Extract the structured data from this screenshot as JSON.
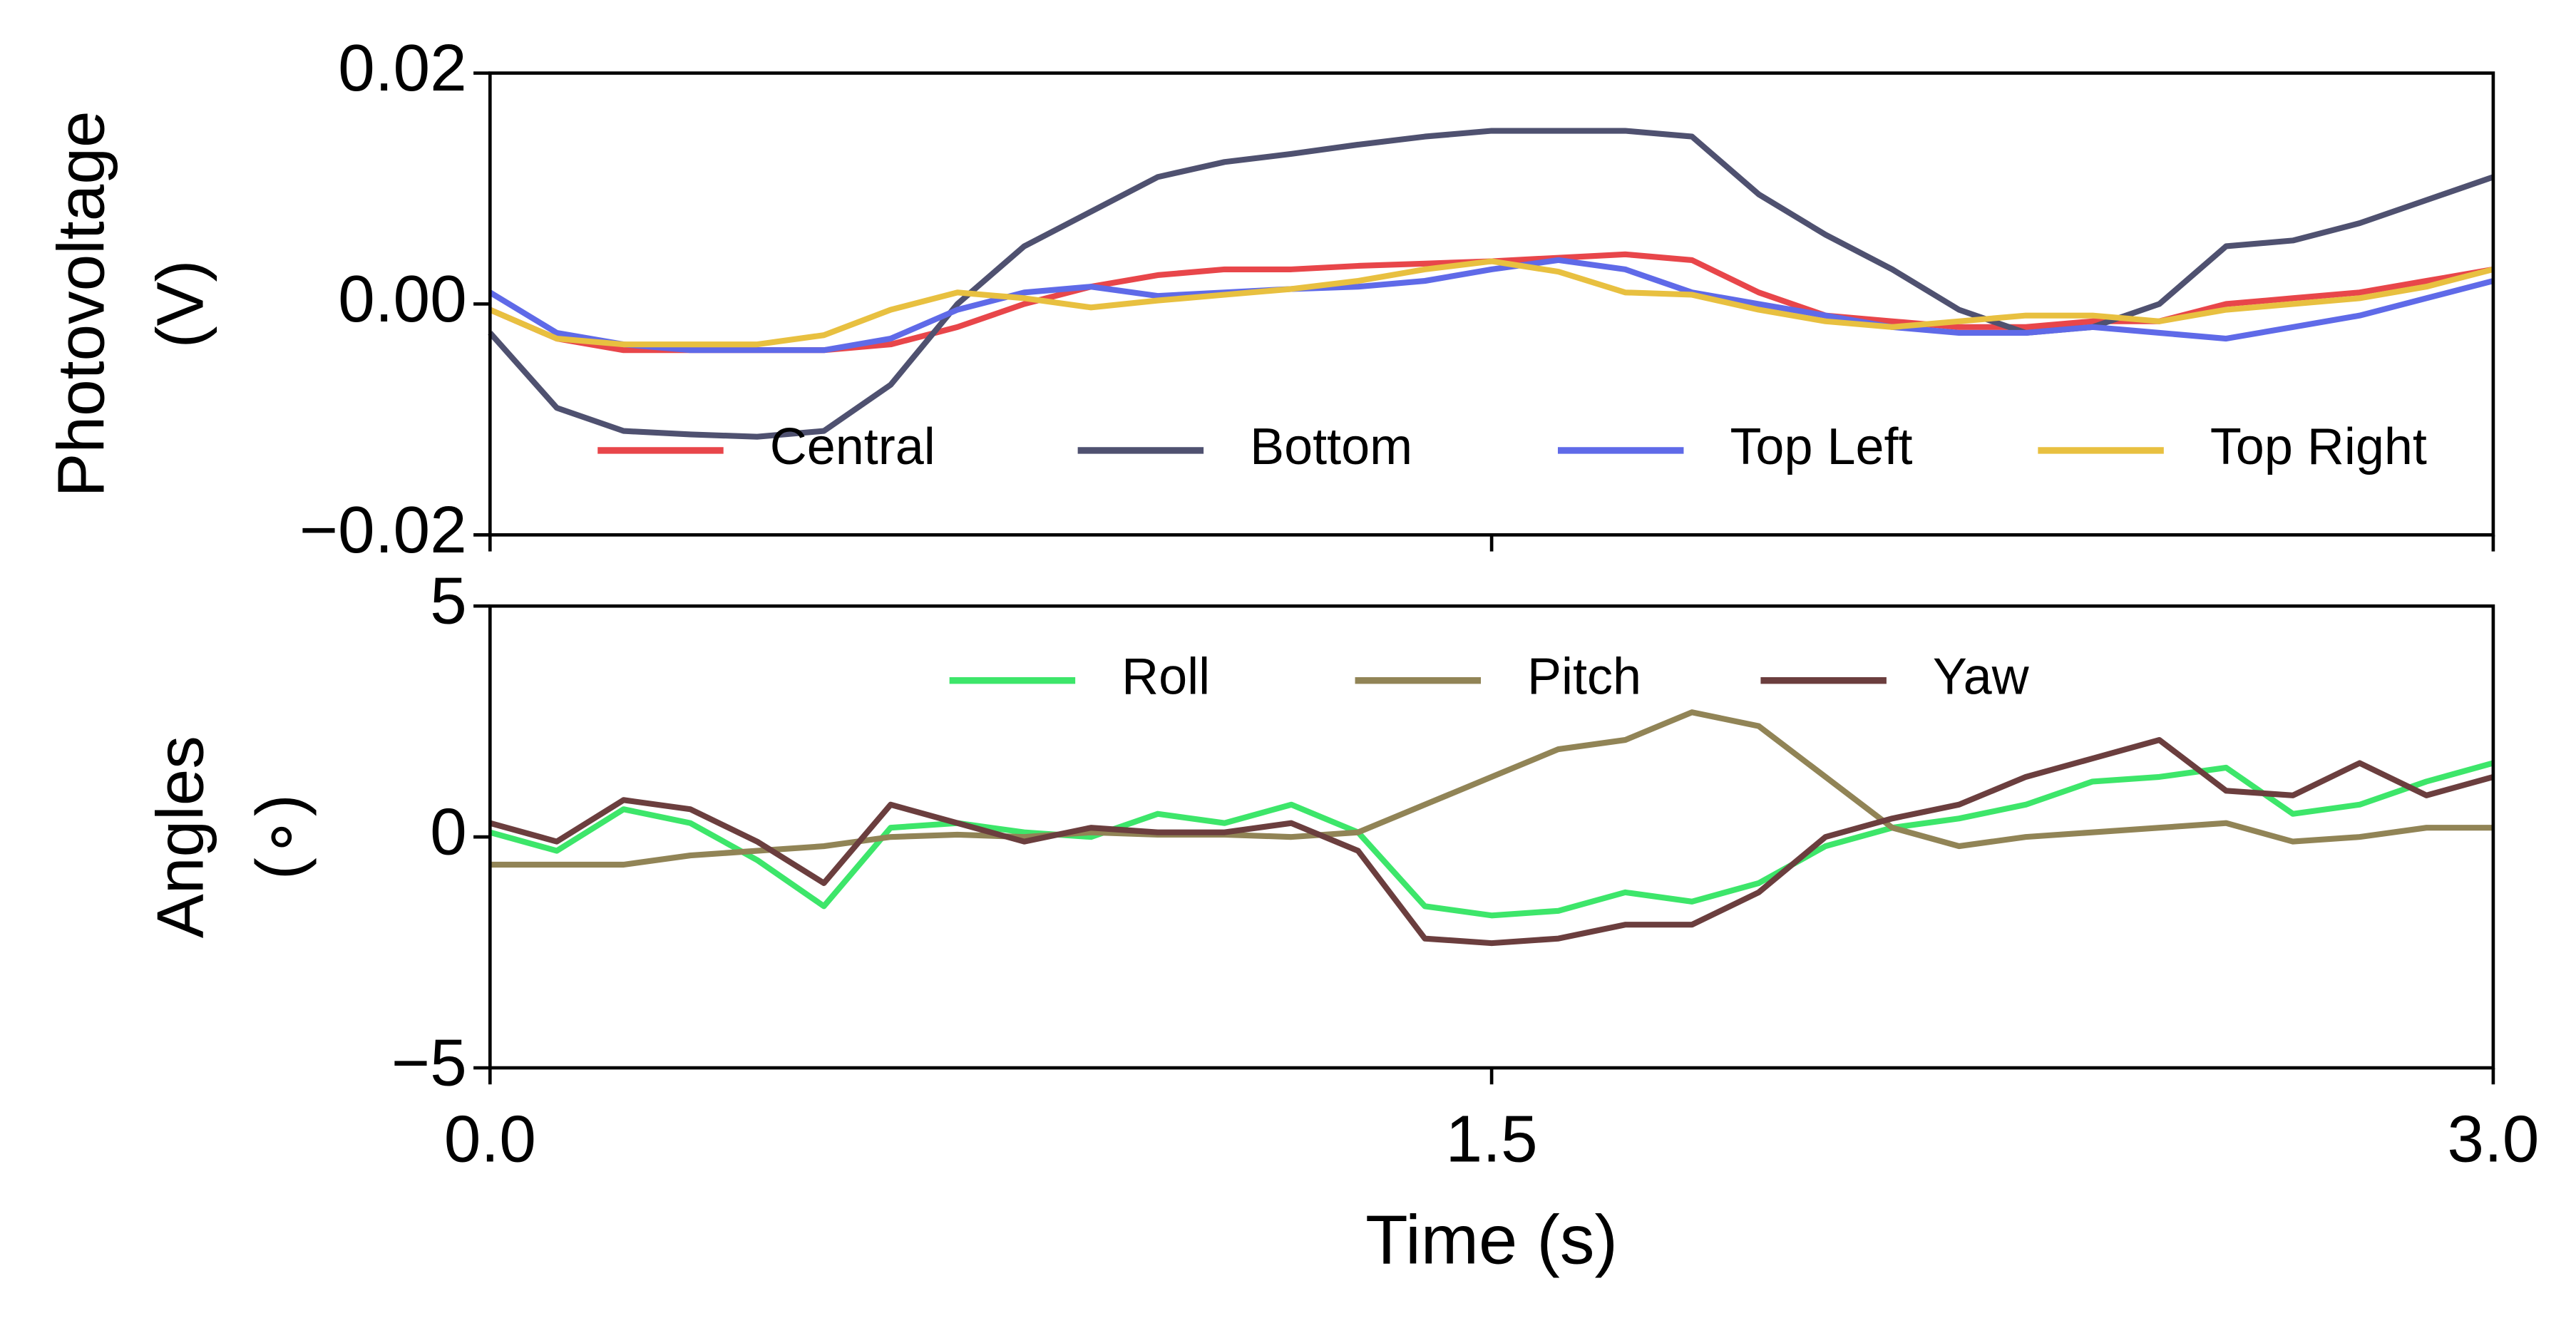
{
  "chart_data": [
    {
      "type": "line",
      "ylabel": [
        "Photovoltage",
        "(V)"
      ],
      "x": [
        0,
        0.1,
        0.2,
        0.3,
        0.4,
        0.5,
        0.6,
        0.7,
        0.8,
        0.9,
        1.0,
        1.1,
        1.2,
        1.3,
        1.4,
        1.5,
        1.6,
        1.7,
        1.8,
        1.9,
        2.0,
        2.1,
        2.2,
        2.3,
        2.4,
        2.5,
        2.6,
        2.7,
        2.8,
        2.9,
        3.0
      ],
      "xlim": [
        0,
        3
      ],
      "ylim": [
        -0.02,
        0.02
      ],
      "yticks": [
        {
          "value": 0.02,
          "label": "0.02"
        },
        {
          "value": 0,
          "label": "0.00"
        },
        {
          "value": -0.02,
          "label": "−0.02"
        }
      ],
      "legend": "lower center",
      "series": [
        {
          "name": "Central",
          "color": "#e8464a",
          "values": [
            -0.0005,
            -0.003,
            -0.004,
            -0.004,
            -0.004,
            -0.004,
            -0.0035,
            -0.002,
            0,
            0.0015,
            0.0025,
            0.003,
            0.003,
            0.0033,
            0.0035,
            0.0037,
            0.004,
            0.0043,
            0.0038,
            0.001,
            -0.001,
            -0.0015,
            -0.002,
            -0.002,
            -0.0015,
            -0.0015,
            0,
            0.0005,
            0.001,
            0.002,
            0.003
          ]
        },
        {
          "name": "Bottom",
          "color": "#4f5170",
          "values": [
            -0.0025,
            -0.009,
            -0.011,
            -0.0113,
            -0.0115,
            -0.011,
            -0.007,
            0,
            0.005,
            0.008,
            0.011,
            0.0123,
            0.013,
            0.0138,
            0.0145,
            0.015,
            0.015,
            0.015,
            0.0145,
            0.0095,
            0.006,
            0.003,
            -0.0005,
            -0.0025,
            -0.002,
            0,
            0.005,
            0.0055,
            0.007,
            0.009,
            0.011
          ]
        },
        {
          "name": "Top Left",
          "color": "#5f6ae8",
          "values": [
            0.001,
            -0.0025,
            -0.0035,
            -0.004,
            -0.004,
            -0.004,
            -0.003,
            -0.0005,
            0.001,
            0.0015,
            0.0007,
            0.001,
            0.0013,
            0.0015,
            0.002,
            0.003,
            0.0038,
            0.003,
            0.001,
            0,
            -0.001,
            -0.002,
            -0.0025,
            -0.0025,
            -0.002,
            -0.0025,
            -0.003,
            -0.002,
            -0.001,
            0.0005,
            0.002
          ]
        },
        {
          "name": "Top Right",
          "color": "#e8c040",
          "values": [
            -0.0005,
            -0.003,
            -0.0035,
            -0.0035,
            -0.0035,
            -0.0027,
            -0.0005,
            0.001,
            0.0005,
            -0.0003,
            0.0003,
            0.0008,
            0.0013,
            0.002,
            0.003,
            0.0037,
            0.0028,
            0.001,
            0.0008,
            -0.0005,
            -0.0015,
            -0.002,
            -0.0015,
            -0.001,
            -0.001,
            -0.0015,
            -0.0005,
            0,
            0.0005,
            0.0015,
            0.003
          ]
        }
      ]
    },
    {
      "type": "line",
      "xlabel": "Time (s)",
      "ylabel": [
        "Angles",
        "(∘)"
      ],
      "x": [
        0,
        0.1,
        0.2,
        0.3,
        0.4,
        0.5,
        0.6,
        0.7,
        0.8,
        0.9,
        1.0,
        1.1,
        1.2,
        1.3,
        1.4,
        1.5,
        1.6,
        1.7,
        1.8,
        1.9,
        2.0,
        2.1,
        2.2,
        2.3,
        2.4,
        2.5,
        2.6,
        2.7,
        2.8,
        2.9,
        3.0
      ],
      "xlim": [
        0,
        3
      ],
      "ylim": [
        -5,
        5
      ],
      "xticks": [
        {
          "value": 0,
          "label": "0.0"
        },
        1.5,
        {
          "value": 3,
          "label": "3.0"
        }
      ],
      "yticks": [
        5,
        0,
        {
          "value": -5,
          "label": "−5"
        }
      ],
      "legend": "upper center",
      "series": [
        {
          "name": "Roll",
          "color": "#3de66a",
          "values": [
            0.1,
            -0.3,
            0.6,
            0.3,
            -0.5,
            -1.5,
            0.2,
            0.3,
            0.1,
            0.0,
            0.5,
            0.3,
            0.7,
            0.1,
            -1.5,
            -1.7,
            -1.6,
            -1.2,
            -1.4,
            -1.0,
            -0.2,
            0.2,
            0.4,
            0.7,
            1.2,
            1.3,
            1.5,
            0.5,
            0.7,
            1.2,
            1.6
          ]
        },
        {
          "name": "Pitch",
          "color": "#918456",
          "values": [
            -0.6,
            -0.6,
            -0.6,
            -0.4,
            -0.3,
            -0.2,
            0,
            0.05,
            0,
            0.1,
            0.05,
            0.05,
            0.0,
            0.1,
            0.7,
            1.3,
            1.9,
            2.1,
            2.7,
            2.4,
            1.3,
            0.2,
            -0.2,
            0.0,
            0.1,
            0.2,
            0.3,
            -0.1,
            0.0,
            0.2,
            0.2
          ]
        },
        {
          "name": "Yaw",
          "color": "#6b3e3e",
          "values": [
            0.3,
            -0.1,
            0.8,
            0.6,
            -0.1,
            -1.0,
            0.7,
            0.3,
            -0.1,
            0.2,
            0.1,
            0.1,
            0.3,
            -0.3,
            -2.2,
            -2.3,
            -2.2,
            -1.9,
            -1.9,
            -1.2,
            0.0,
            0.4,
            0.7,
            1.3,
            1.7,
            2.1,
            1.0,
            0.9,
            1.6,
            0.9,
            1.3
          ]
        }
      ]
    }
  ]
}
